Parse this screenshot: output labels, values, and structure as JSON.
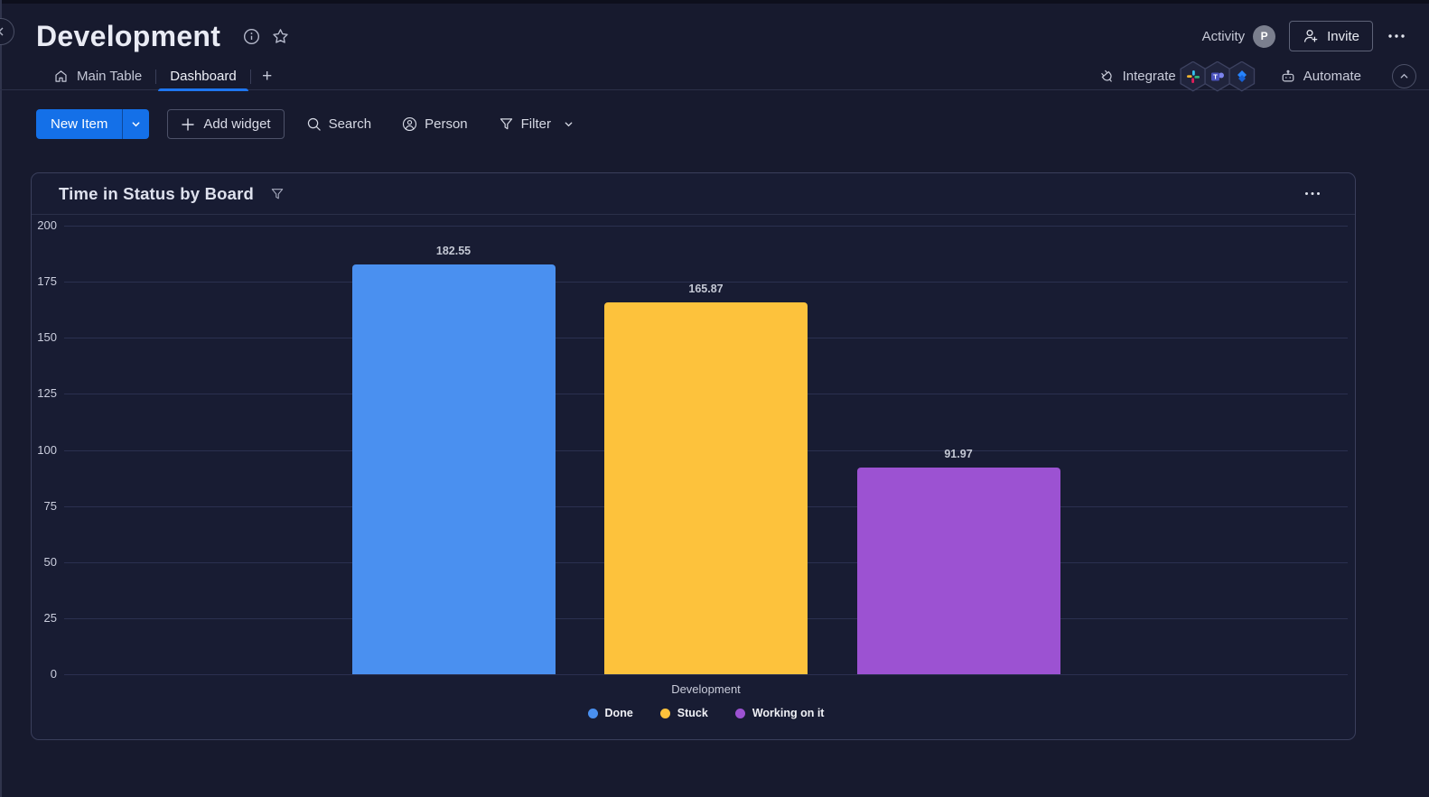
{
  "page": {
    "title": "Development",
    "activity": "Activity",
    "avatar_initial": "P",
    "invite": "Invite",
    "tabs": [
      {
        "label": "Main Table"
      },
      {
        "label": "Dashboard"
      }
    ],
    "add_tab": "+",
    "integrate": "Integrate",
    "automate": "Automate",
    "integration_icons": [
      "slack-icon",
      "teams-icon",
      "jira-icon"
    ],
    "toolbar": {
      "new_item": "New Item",
      "add_widget": "Add widget",
      "search": "Search",
      "person": "Person",
      "filter": "Filter"
    }
  },
  "widget": {
    "title": "Time in Status by Board"
  },
  "chart_data": {
    "type": "bar",
    "title": "Time in Status by Board",
    "categories": [
      "Development"
    ],
    "series": [
      {
        "name": "Done",
        "color": "#4a90f0",
        "values": [
          182.55
        ]
      },
      {
        "name": "Stuck",
        "color": "#fdc23c",
        "values": [
          165.87
        ]
      },
      {
        "name": "Working on it",
        "color": "#9c52d2",
        "values": [
          91.97
        ]
      }
    ],
    "xlabel": "",
    "ylabel": "",
    "ylim": [
      0,
      200
    ],
    "yticks": [
      0,
      25,
      50,
      75,
      100,
      125,
      150,
      175,
      200
    ],
    "grid": true,
    "legend_position": "bottom"
  },
  "colors": {
    "accent_blue": "#1470e8",
    "bar_blue": "#4a90f0",
    "bar_yellow": "#fdc23c",
    "bar_purple": "#9c52d2",
    "background": "#171a2e",
    "widget_background": "#181c33"
  }
}
